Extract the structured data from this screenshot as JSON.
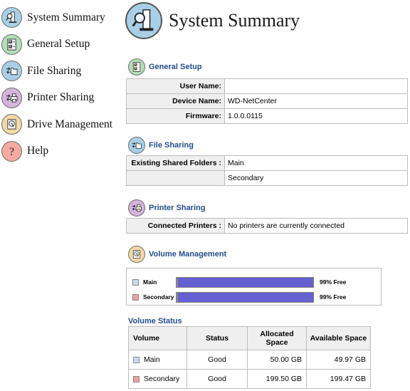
{
  "nav": {
    "items": [
      {
        "label": "System Summary",
        "icon": "magnifier-device-icon",
        "color": "#a8cfe6"
      },
      {
        "label": "General Setup",
        "icon": "checklist-icon",
        "color": "#b4dfb8"
      },
      {
        "label": "File Sharing",
        "icon": "folder-share-icon",
        "color": "#a8cfe6"
      },
      {
        "label": "Printer Sharing",
        "icon": "printer-share-icon",
        "color": "#d6b4dc"
      },
      {
        "label": "Drive Management",
        "icon": "hard-drive-icon",
        "color": "#f2d9a6"
      },
      {
        "label": "Help",
        "icon": "question-icon",
        "color": "#f4a9a1"
      }
    ]
  },
  "header": {
    "title": "System Summary",
    "icon": "magnifier-device-icon"
  },
  "general": {
    "title": "General Setup",
    "rows": [
      {
        "key": "User Name:",
        "value": ""
      },
      {
        "key": "Device Name:",
        "value": "WD-NetCenter"
      },
      {
        "key": "Firmware:",
        "value": "1.0.0.0115"
      }
    ]
  },
  "file_sharing": {
    "title": "File Sharing",
    "key": "Existing Shared Folders :",
    "folders": [
      "Main",
      "Secondary"
    ]
  },
  "printer_sharing": {
    "title": "Printer Sharing",
    "key": "Connected Printers :",
    "value": "No printers are currently connected"
  },
  "volume_management": {
    "title": "Volume Management",
    "volumes": [
      {
        "name": "Main",
        "free_label": "99% Free",
        "free_fraction": 0.99,
        "color": "#c9dcef"
      },
      {
        "name": "Secondary",
        "free_label": "99% Free",
        "free_fraction": 0.99,
        "color": "#f0a0a0"
      }
    ]
  },
  "volume_status": {
    "title": "Volume Status",
    "headers": [
      "Volume",
      "Status",
      "Allocated Space",
      "Available Space"
    ],
    "rows": [
      {
        "volume": "Main",
        "status": "Good",
        "allocated": "50.00 GB",
        "available": "49.97 GB"
      },
      {
        "volume": "Secondary",
        "status": "Good",
        "allocated": "199.50 GB",
        "available": "199.47 GB"
      }
    ]
  },
  "colors": {
    "accent": "#244d8c",
    "bar": "#6560d2",
    "border": "#bdbdbd",
    "key_bg": "#efefef"
  }
}
